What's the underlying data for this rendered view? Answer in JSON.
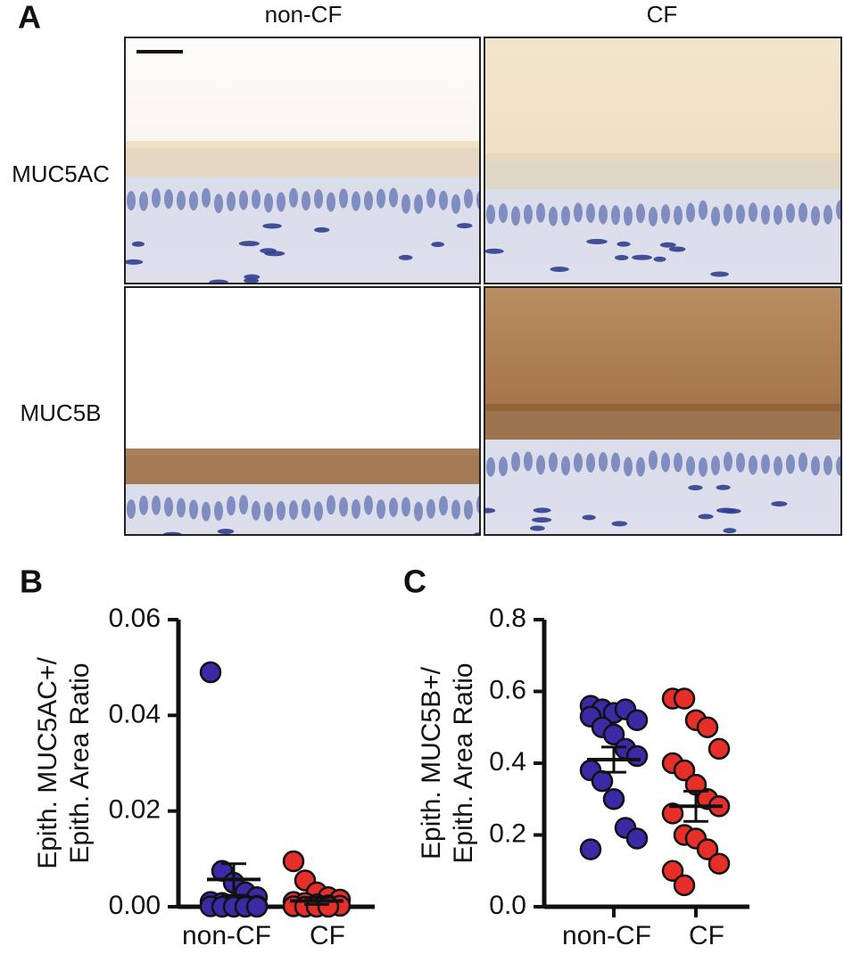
{
  "panel_a": {
    "label": "A",
    "columns": [
      "non-CF",
      "CF"
    ],
    "rows": [
      "MUC5AC",
      "MUC5B"
    ]
  },
  "chart_data": [
    {
      "type": "dotplot",
      "panel": "B",
      "ylabel": [
        "Epith. MUC5AC+/",
        "Epith. Area Ratio"
      ],
      "categories": [
        "non-CF",
        "CF"
      ],
      "ylim": [
        0,
        0.06
      ],
      "yticks": [
        {
          "value": 0,
          "label": "0.00"
        },
        0.02,
        0.04,
        0.06
      ],
      "groups": [
        {
          "color": "#3a2aa6",
          "values": [
            0.049,
            0.0075,
            0.005,
            0.003,
            0.002,
            0.001,
            0.0008,
            0.0005,
            0.0003,
            0.0002,
            0.0001,
            0,
            0,
            0,
            0
          ],
          "mean": 0.0057,
          "sem": 0.0033
        },
        {
          "color": "#e52f28",
          "values": [
            0.0095,
            0.0055,
            0.003,
            0.002,
            0.0015,
            0.001,
            0.0008,
            0.0005,
            0.0003,
            0.0002,
            0.0001,
            0,
            0,
            0
          ],
          "mean": 0.0012,
          "sem": 0.0007
        }
      ]
    },
    {
      "type": "dotplot",
      "panel": "C",
      "ylabel": [
        "Epith. MUC5B+/",
        "Epith. Area  Ratio"
      ],
      "categories": [
        "non-CF",
        "CF"
      ],
      "ylim": [
        0,
        0.8
      ],
      "yticks": [
        {
          "value": 0,
          "label": "0.0"
        },
        0.2,
        0.4,
        0.6,
        0.8
      ],
      "groups": [
        {
          "color": "#3a2aa6",
          "values": [
            0.56,
            0.55,
            0.54,
            0.55,
            0.52,
            0.53,
            0.5,
            0.48,
            0.44,
            0.42,
            0.38,
            0.35,
            0.3,
            0.22,
            0.19,
            0.16
          ],
          "mean": 0.41,
          "sem": 0.035
        },
        {
          "color": "#e52f28",
          "values": [
            0.58,
            0.58,
            0.52,
            0.5,
            0.44,
            0.4,
            0.38,
            0.34,
            0.3,
            0.28,
            0.26,
            0.2,
            0.19,
            0.16,
            0.12,
            0.1,
            0.06
          ],
          "mean": 0.28,
          "sem": 0.042
        }
      ]
    }
  ]
}
